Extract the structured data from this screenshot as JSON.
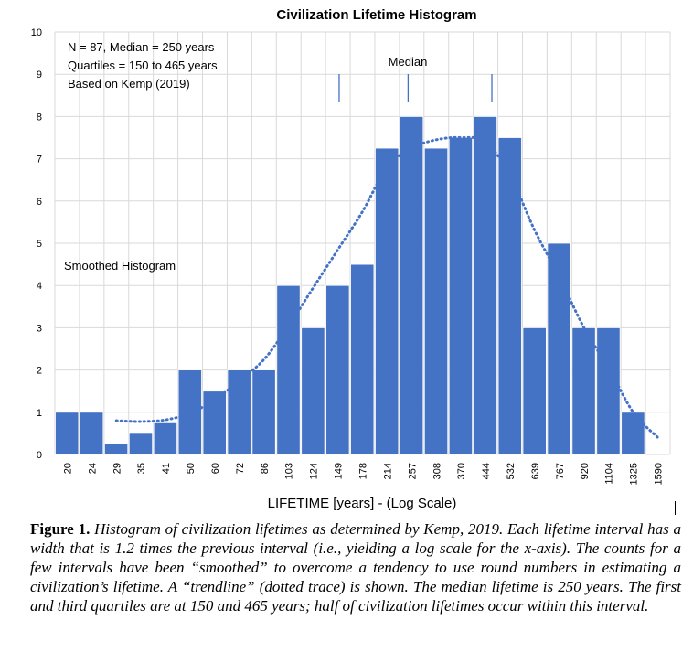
{
  "chart_data": {
    "type": "bar",
    "title": "Civilization Lifetime Histogram",
    "xlabel": "LIFETIME [years] - (Log Scale)",
    "ylabel": "",
    "ylim": [
      0,
      10
    ],
    "y_ticks": [
      "0",
      "1",
      "2",
      "3",
      "4",
      "5",
      "6",
      "7",
      "8",
      "9",
      "10"
    ],
    "categories": [
      "20",
      "24",
      "29",
      "35",
      "41",
      "50",
      "60",
      "72",
      "86",
      "103",
      "124",
      "149",
      "178",
      "214",
      "257",
      "308",
      "370",
      "444",
      "532",
      "639",
      "767",
      "920",
      "1104",
      "1325",
      "1590"
    ],
    "series": [
      {
        "name": "",
        "values": [
          1,
          1,
          0.25,
          0.5,
          0.75,
          2,
          1.5,
          2,
          2,
          4,
          3,
          4,
          4.5,
          7.25,
          8,
          7.25,
          7.5,
          8,
          7.5,
          3,
          5,
          3,
          3,
          1,
          0
        ]
      }
    ],
    "trendline": {
      "style": "dotted",
      "values": [
        null,
        null,
        0.8,
        0.78,
        0.82,
        0.98,
        1.3,
        1.75,
        2.25,
        3.05,
        3.95,
        4.85,
        5.75,
        6.8,
        7.25,
        7.45,
        7.5,
        7.4,
        6.6,
        5.3,
        4.2,
        3.0,
        2.05,
        1.0,
        0.4
      ]
    },
    "annotations": {
      "info_lines": [
        "N = 87, Median = 250 years",
        "Quartiles = 150 to 465 years",
        "Based on Kemp (2019)"
      ],
      "median_label": "Median",
      "smoothed_label": "Smoothed Histogram",
      "marker_years": [
        150,
        250,
        465
      ]
    },
    "grid": true,
    "legend": "none",
    "colors": {
      "bar": "#4472C4",
      "bar_edge": "#ffffff",
      "grid": "#d9d9d9",
      "trendline": "#4472C4",
      "marker": "#4472C4"
    }
  },
  "caption": {
    "label": "Figure 1.",
    "text": "Histogram of civilization lifetimes as determined by Kemp, 2019. Each lifetime interval has a width that is 1.2 times the previous interval (i.e., yielding a log scale for the x-axis). The counts for a few intervals have been “smoothed” to overcome a tendency to use round numbers in estimating a civilization’s lifetime. A “trendline” (dotted trace) is shown. The median lifetime is 250 years. The first and third quartiles are at 150 and 465 years; half of civilization lifetimes occur within this interval."
  }
}
